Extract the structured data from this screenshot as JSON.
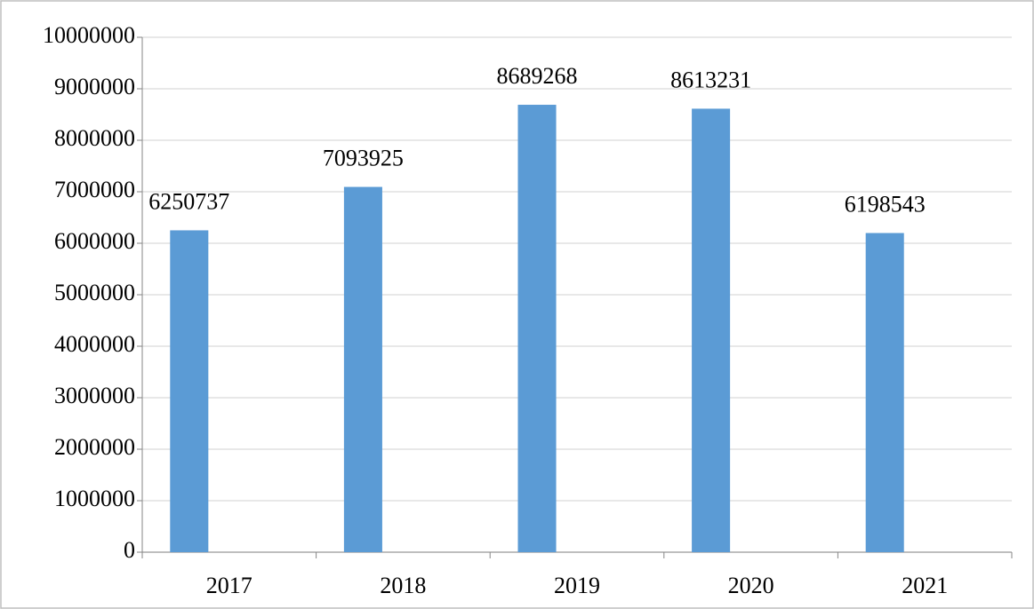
{
  "chart_data": {
    "type": "bar",
    "categories": [
      "2017",
      "2018",
      "2019",
      "2020",
      "2021"
    ],
    "values": [
      6250737,
      7093925,
      8689268,
      8613231,
      6198543
    ],
    "color": "#5b9bd5",
    "ylim": [
      0,
      10000000
    ],
    "yticks": [
      0,
      1000000,
      2000000,
      3000000,
      4000000,
      5000000,
      6000000,
      7000000,
      8000000,
      9000000,
      10000000
    ],
    "grid": true
  }
}
